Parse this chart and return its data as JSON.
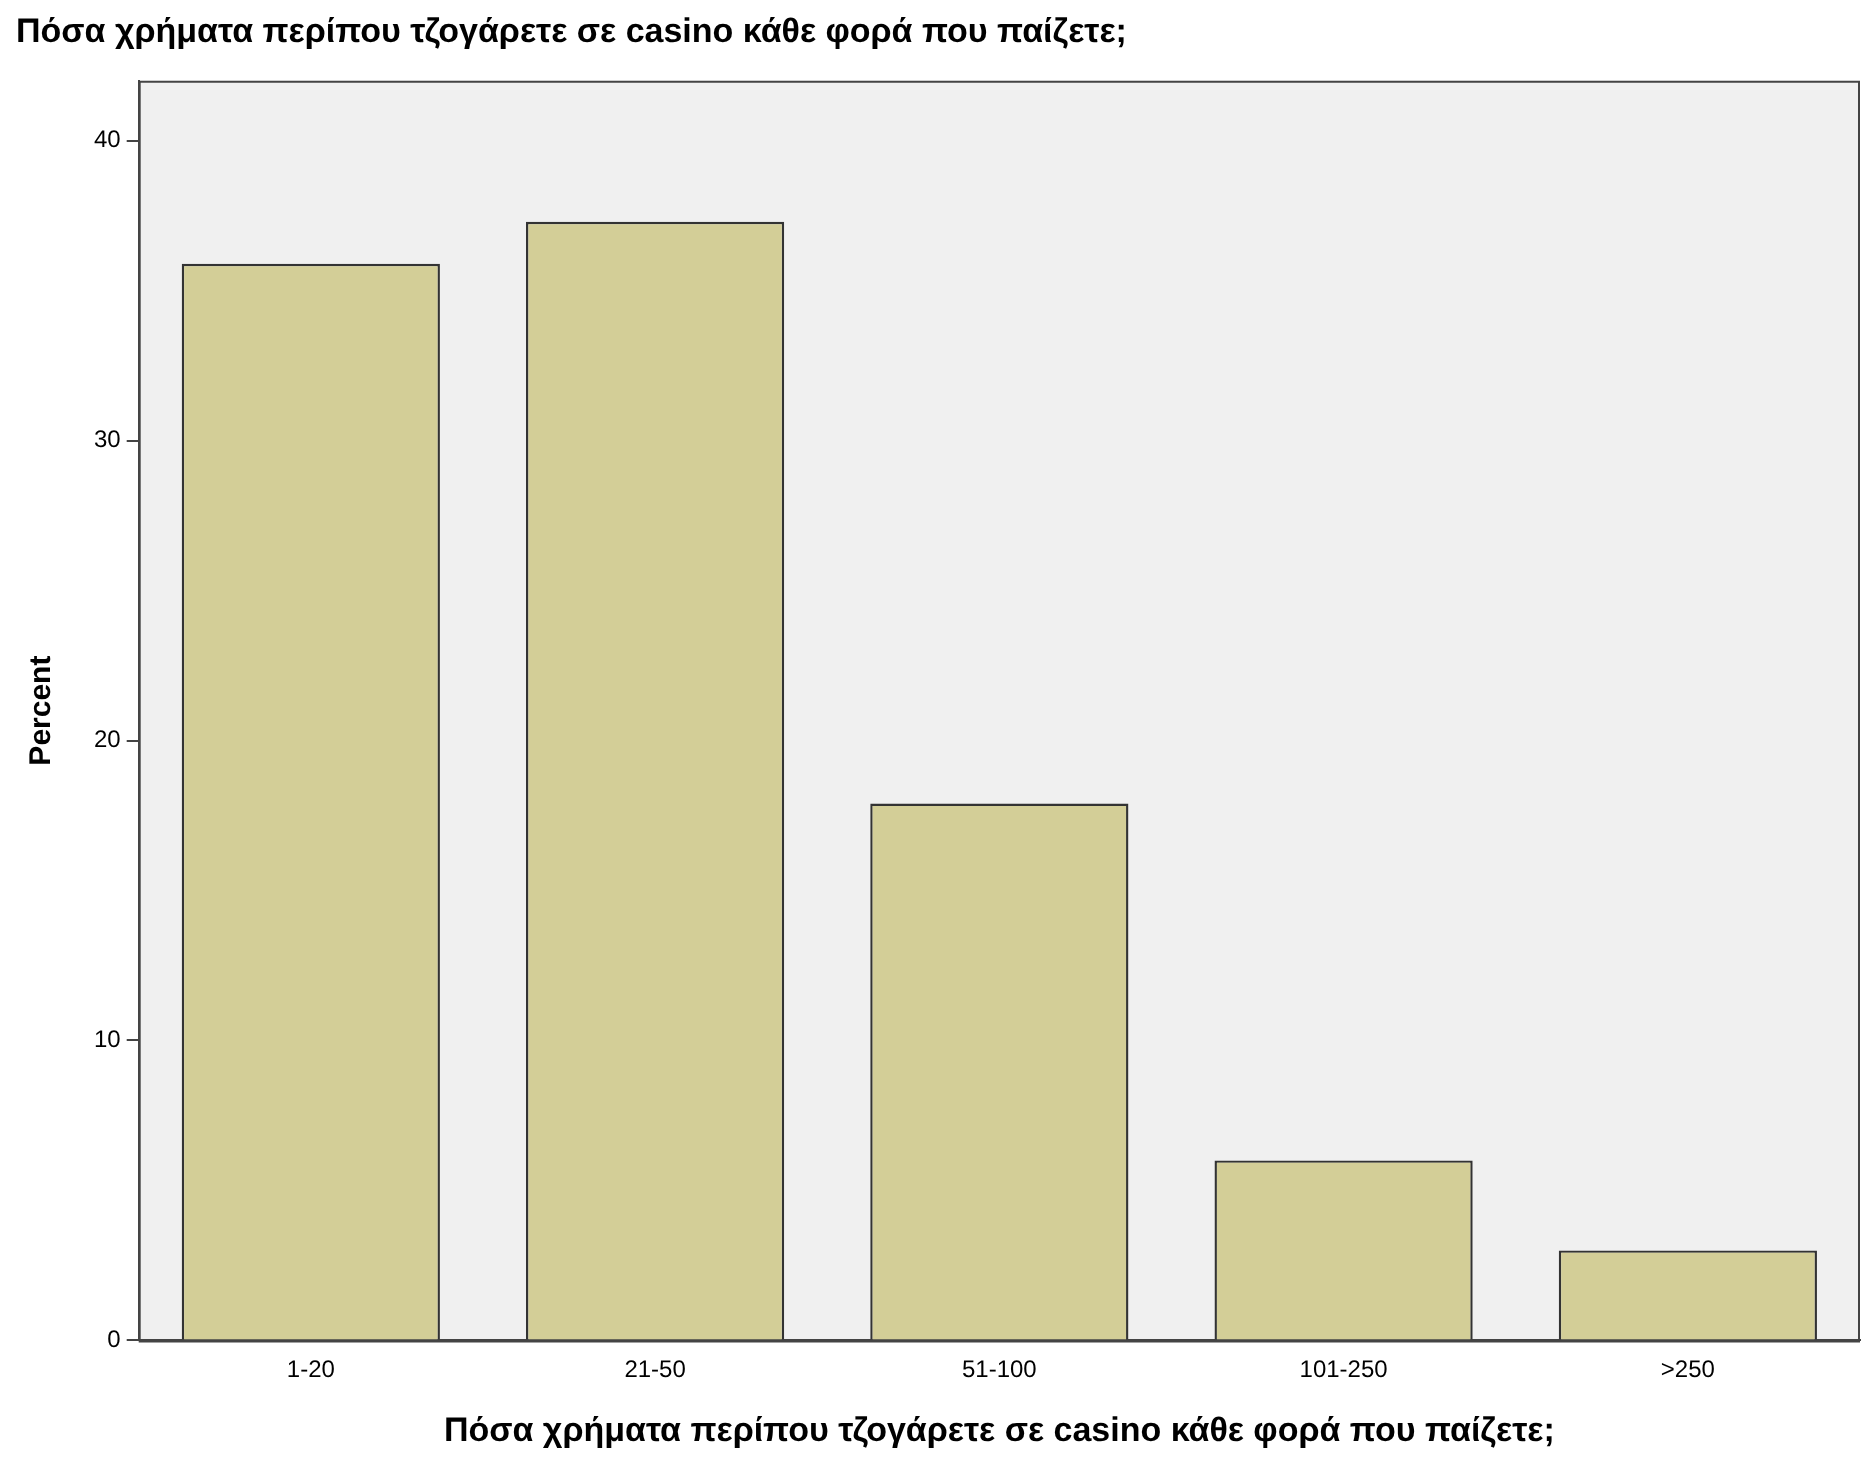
{
  "chart_data": {
    "type": "bar",
    "title": "Πόσα χρήματα περίπου τζογάρετε σε casino κάθε φορά που παίζετε;",
    "xlabel": "Πόσα χρήματα περίπου τζογάρετε σε casino κάθε φορά που παίζετε;",
    "ylabel": "Percent",
    "categories": [
      "1-20",
      "21-50",
      "51-100",
      "101-250",
      ">250"
    ],
    "values": [
      35.9,
      37.3,
      17.9,
      6.0,
      3.0
    ],
    "color": "#d3ce97",
    "ylim": [
      0,
      42
    ],
    "yticks": [
      0,
      10,
      20,
      30,
      40
    ],
    "grid": false,
    "legend": false
  }
}
